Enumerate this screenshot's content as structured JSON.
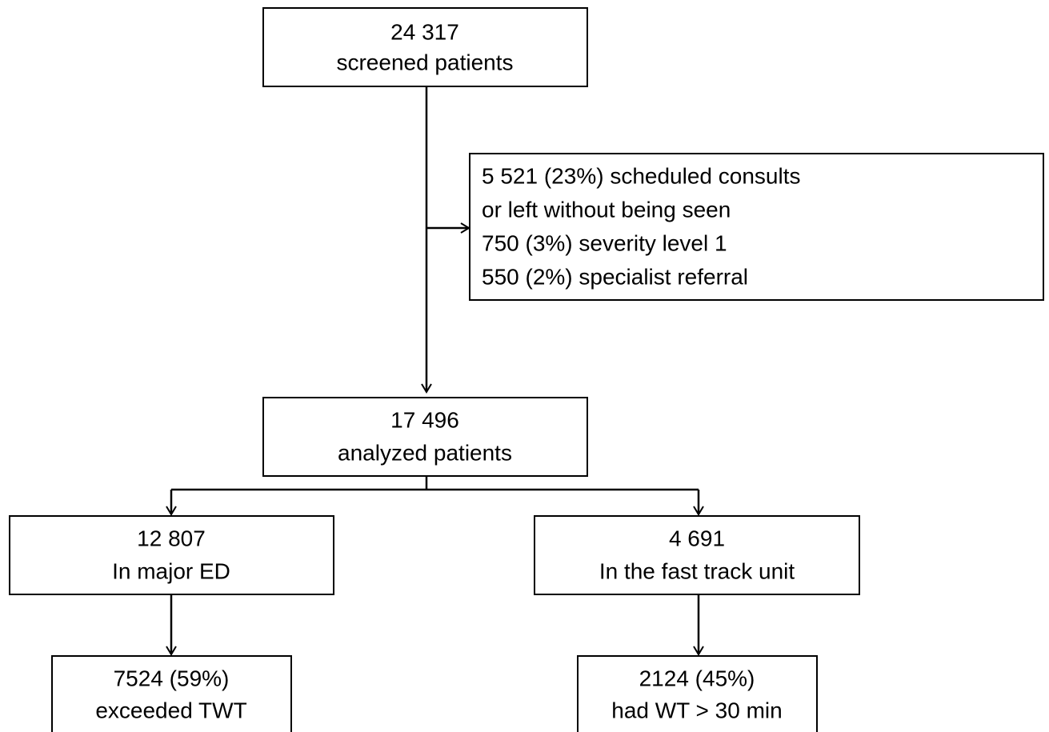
{
  "nodes": [
    {
      "lines": [
        "24 317",
        "screened patients"
      ]
    },
    {
      "lines": [
        "5 521 (23%) scheduled consults",
        "or left without being seen",
        "750 (3%) severity level 1",
        "550 (2%) specialist referral"
      ]
    },
    {
      "lines": [
        "17 496",
        "analyzed patients"
      ]
    },
    {
      "lines": [
        "12 807",
        "In major ED"
      ]
    },
    {
      "lines": [
        "4 691",
        "In the fast track unit"
      ]
    },
    {
      "lines": [
        "7524 (59%)",
        "exceeded TWT"
      ]
    },
    {
      "lines": [
        "2124 (45%)",
        "had WT > 30 min"
      ]
    }
  ]
}
